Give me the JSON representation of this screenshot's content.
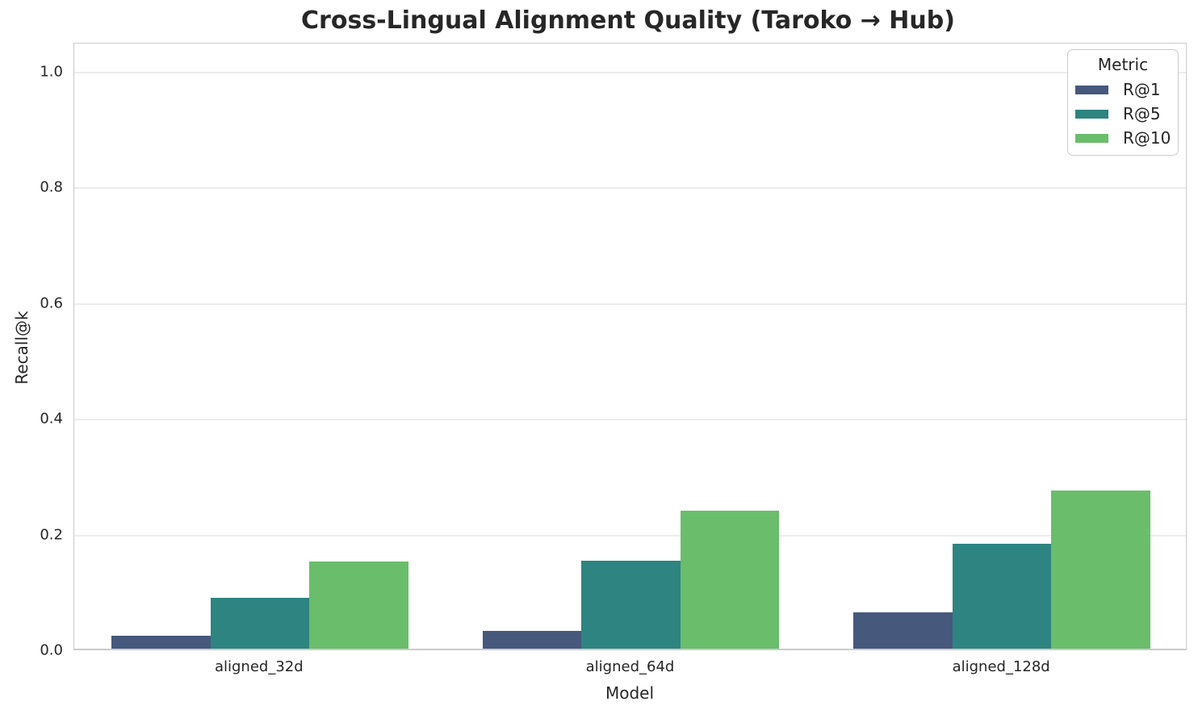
{
  "chart_data": {
    "type": "bar",
    "title": "Cross-Lingual Alignment Quality (Taroko → Hub)",
    "xlabel": "Model",
    "ylabel": "Recall@k",
    "categories": [
      "aligned_32d",
      "aligned_64d",
      "aligned_128d"
    ],
    "series": [
      {
        "name": "R@1",
        "color": "#46587c",
        "values": [
          0.022,
          0.031,
          0.063
        ]
      },
      {
        "name": "R@5",
        "color": "#2e8480",
        "values": [
          0.088,
          0.152,
          0.181
        ]
      },
      {
        "name": "R@10",
        "color": "#6abd6b",
        "values": [
          0.15,
          0.238,
          0.274
        ]
      }
    ],
    "ylim": [
      0,
      1.05
    ],
    "yticks": [
      {
        "value": 0.0,
        "label": "0.0"
      },
      {
        "value": 0.2,
        "label": "0.2"
      },
      {
        "value": 0.4,
        "label": "0.4"
      },
      {
        "value": 0.6,
        "label": "0.6"
      },
      {
        "value": 0.8,
        "label": "0.8"
      },
      {
        "value": 1.0,
        "label": "1.0"
      }
    ],
    "legend": {
      "title": "Metric",
      "position": "upper right"
    },
    "grid": "horizontal",
    "colors": {
      "grid": "#ececec",
      "spine": "#cbcbcb",
      "text": "#262626",
      "background": "#ffffff"
    }
  }
}
